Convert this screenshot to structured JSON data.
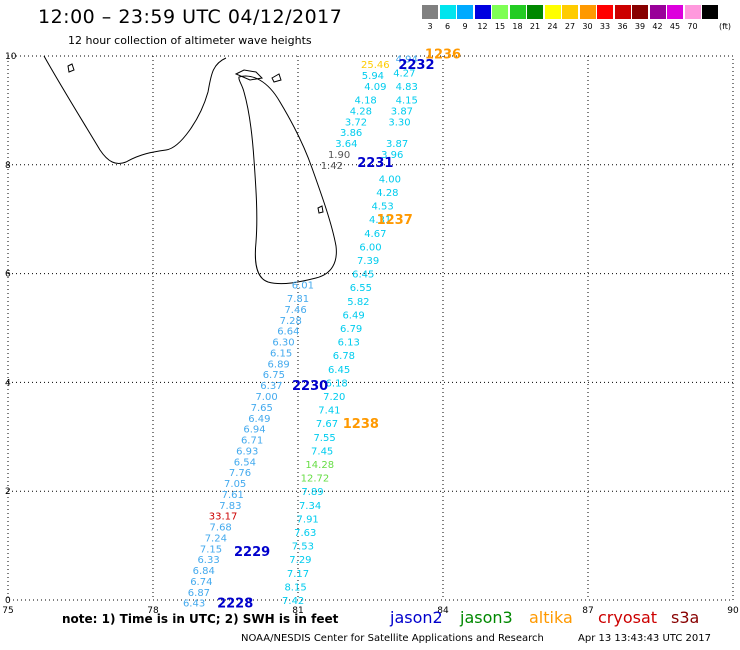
{
  "title": "12:00 – 23:59 UTC 04/12/2017",
  "subtitle": "12 hour collection of altimeter wave heights",
  "legend": {
    "unit": "(ft)",
    "bins": [
      {
        "label": "3",
        "color": "#808080"
      },
      {
        "label": "6",
        "color": "#00e5ee"
      },
      {
        "label": "9",
        "color": "#00aaff"
      },
      {
        "label": "12",
        "color": "#0000e0"
      },
      {
        "label": "15",
        "color": "#7fff55"
      },
      {
        "label": "18",
        "color": "#22cc22"
      },
      {
        "label": "21",
        "color": "#008800"
      },
      {
        "label": "24",
        "color": "#ffff00"
      },
      {
        "label": "27",
        "color": "#ffcc00"
      },
      {
        "label": "30",
        "color": "#ff9900"
      },
      {
        "label": "33",
        "color": "#ff0000"
      },
      {
        "label": "36",
        "color": "#cc0000"
      },
      {
        "label": "39",
        "color": "#880000"
      },
      {
        "label": "42",
        "color": "#990099"
      },
      {
        "label": "45",
        "color": "#dd00dd"
      },
      {
        "label": "70",
        "color": "#ff99dd"
      },
      {
        "label": "",
        "color": "#000000"
      }
    ]
  },
  "map": {
    "lon_range": [
      75,
      90
    ],
    "lat_range": [
      0,
      10
    ],
    "x_ticks": [
      "75",
      "78",
      "81",
      "84",
      "87",
      "90"
    ],
    "y_ticks": [
      "0",
      "2",
      "4",
      "6",
      "8",
      "10"
    ]
  },
  "colors": {
    "cyan": "#00ccee",
    "lightblue": "#44aaee",
    "gray": "#555555",
    "orange": "#ff9900",
    "green": "#66dd44",
    "red": "#cc0000",
    "yellow": "#ffcc00",
    "navy": "#0000cc",
    "altika": "#ff9900"
  },
  "observations": [
    {
      "v": "4.94",
      "lon": 83.25,
      "lat": 9.95,
      "c": "lightblue"
    },
    {
      "v": "25.46",
      "lon": 82.6,
      "lat": 9.85,
      "c": "yellow"
    },
    {
      "v": "5.94",
      "lon": 82.55,
      "lat": 9.65,
      "c": "cyan"
    },
    {
      "v": "4.27",
      "lon": 83.2,
      "lat": 9.7,
      "c": "cyan"
    },
    {
      "v": "4.09",
      "lon": 82.6,
      "lat": 9.45,
      "c": "cyan"
    },
    {
      "v": "4.83",
      "lon": 83.25,
      "lat": 9.45,
      "c": "cyan"
    },
    {
      "v": "4.18",
      "lon": 82.4,
      "lat": 9.2,
      "c": "cyan"
    },
    {
      "v": "4.15",
      "lon": 83.25,
      "lat": 9.2,
      "c": "cyan"
    },
    {
      "v": "4.28",
      "lon": 82.3,
      "lat": 9.0,
      "c": "cyan"
    },
    {
      "v": "3.87",
      "lon": 83.15,
      "lat": 9.0,
      "c": "cyan"
    },
    {
      "v": "3.72",
      "lon": 82.2,
      "lat": 8.8,
      "c": "cyan"
    },
    {
      "v": "3.30",
      "lon": 83.1,
      "lat": 8.8,
      "c": "cyan"
    },
    {
      "v": "3.86",
      "lon": 82.1,
      "lat": 8.6,
      "c": "cyan"
    },
    {
      "v": "3.64",
      "lon": 82.0,
      "lat": 8.4,
      "c": "cyan"
    },
    {
      "v": "3.87",
      "lon": 83.05,
      "lat": 8.4,
      "c": "cyan"
    },
    {
      "v": "1.90",
      "lon": 81.85,
      "lat": 8.2,
      "c": "gray"
    },
    {
      "v": "3.96",
      "lon": 82.95,
      "lat": 8.2,
      "c": "cyan"
    },
    {
      "v": "1.42",
      "lon": 81.7,
      "lat": 8.0,
      "c": "gray"
    },
    {
      "v": "4.00",
      "lon": 82.9,
      "lat": 7.75,
      "c": "cyan"
    },
    {
      "v": "4.28",
      "lon": 82.85,
      "lat": 7.5,
      "c": "cyan"
    },
    {
      "v": "4.53",
      "lon": 82.75,
      "lat": 7.25,
      "c": "cyan"
    },
    {
      "v": "4.31",
      "lon": 82.7,
      "lat": 7.0,
      "c": "cyan"
    },
    {
      "v": "4.67",
      "lon": 82.6,
      "lat": 6.75,
      "c": "cyan"
    },
    {
      "v": "6.00",
      "lon": 82.5,
      "lat": 6.5,
      "c": "cyan"
    },
    {
      "v": "7.39",
      "lon": 82.45,
      "lat": 6.25,
      "c": "cyan"
    },
    {
      "v": "6.45",
      "lon": 82.35,
      "lat": 6.0,
      "c": "cyan"
    },
    {
      "v": "6.55",
      "lon": 82.3,
      "lat": 5.75,
      "c": "cyan"
    },
    {
      "v": "5.82",
      "lon": 82.25,
      "lat": 5.5,
      "c": "cyan"
    },
    {
      "v": "6.49",
      "lon": 82.15,
      "lat": 5.25,
      "c": "cyan"
    },
    {
      "v": "6.79",
      "lon": 82.1,
      "lat": 5.0,
      "c": "cyan"
    },
    {
      "v": "6.13",
      "lon": 82.05,
      "lat": 4.75,
      "c": "cyan"
    },
    {
      "v": "6.78",
      "lon": 81.95,
      "lat": 4.5,
      "c": "cyan"
    },
    {
      "v": "6.45",
      "lon": 81.85,
      "lat": 4.25,
      "c": "cyan"
    },
    {
      "v": "6.18",
      "lon": 81.8,
      "lat": 4.0,
      "c": "cyan"
    },
    {
      "v": "7.20",
      "lon": 81.75,
      "lat": 3.75,
      "c": "cyan"
    },
    {
      "v": "7.41",
      "lon": 81.65,
      "lat": 3.5,
      "c": "cyan"
    },
    {
      "v": "7.67",
      "lon": 81.6,
      "lat": 3.25,
      "c": "cyan"
    },
    {
      "v": "7.55",
      "lon": 81.55,
      "lat": 3.0,
      "c": "cyan"
    },
    {
      "v": "7.45",
      "lon": 81.5,
      "lat": 2.75,
      "c": "cyan"
    },
    {
      "v": "14.28",
      "lon": 81.45,
      "lat": 2.5,
      "c": "green"
    },
    {
      "v": "12.72",
      "lon": 81.35,
      "lat": 2.25,
      "c": "green"
    },
    {
      "v": "7.89",
      "lon": 81.3,
      "lat": 2.0,
      "c": "cyan"
    },
    {
      "v": "7.34",
      "lon": 81.25,
      "lat": 1.75,
      "c": "cyan"
    },
    {
      "v": "7.91",
      "lon": 81.2,
      "lat": 1.5,
      "c": "cyan"
    },
    {
      "v": "7.63",
      "lon": 81.15,
      "lat": 1.25,
      "c": "cyan"
    },
    {
      "v": "7.53",
      "lon": 81.1,
      "lat": 1.0,
      "c": "cyan"
    },
    {
      "v": "7.29",
      "lon": 81.05,
      "lat": 0.75,
      "c": "cyan"
    },
    {
      "v": "7.17",
      "lon": 81.0,
      "lat": 0.5,
      "c": "cyan"
    },
    {
      "v": "8.15",
      "lon": 80.95,
      "lat": 0.25,
      "c": "cyan"
    },
    {
      "v": "7.42",
      "lon": 80.9,
      "lat": 0.0,
      "c": "cyan"
    },
    {
      "v": "6.01",
      "lon": 81.1,
      "lat": 5.8,
      "c": "lightblue"
    },
    {
      "v": "7.81",
      "lon": 81.0,
      "lat": 5.55,
      "c": "lightblue"
    },
    {
      "v": "7.46",
      "lon": 80.95,
      "lat": 5.35,
      "c": "lightblue"
    },
    {
      "v": "7.28",
      "lon": 80.85,
      "lat": 5.15,
      "c": "lightblue"
    },
    {
      "v": "6.64",
      "lon": 80.8,
      "lat": 4.95,
      "c": "lightblue"
    },
    {
      "v": "6.30",
      "lon": 80.7,
      "lat": 4.75,
      "c": "lightblue"
    },
    {
      "v": "6.15",
      "lon": 80.65,
      "lat": 4.55,
      "c": "lightblue"
    },
    {
      "v": "6.89",
      "lon": 80.6,
      "lat": 4.35,
      "c": "lightblue"
    },
    {
      "v": "6.75",
      "lon": 80.5,
      "lat": 4.15,
      "c": "lightblue"
    },
    {
      "v": "6.37",
      "lon": 80.45,
      "lat": 3.95,
      "c": "lightblue"
    },
    {
      "v": "7.00",
      "lon": 80.35,
      "lat": 3.75,
      "c": "lightblue"
    },
    {
      "v": "7.65",
      "lon": 80.25,
      "lat": 3.55,
      "c": "lightblue"
    },
    {
      "v": "6.49",
      "lon": 80.2,
      "lat": 3.35,
      "c": "lightblue"
    },
    {
      "v": "6.94",
      "lon": 80.1,
      "lat": 3.15,
      "c": "lightblue"
    },
    {
      "v": "6.71",
      "lon": 80.05,
      "lat": 2.95,
      "c": "lightblue"
    },
    {
      "v": "6.93",
      "lon": 79.95,
      "lat": 2.75,
      "c": "lightblue"
    },
    {
      "v": "6.54",
      "lon": 79.9,
      "lat": 2.55,
      "c": "lightblue"
    },
    {
      "v": "7.76",
      "lon": 79.8,
      "lat": 2.35,
      "c": "lightblue"
    },
    {
      "v": "7.05",
      "lon": 79.7,
      "lat": 2.15,
      "c": "lightblue"
    },
    {
      "v": "7.61",
      "lon": 79.65,
      "lat": 1.95,
      "c": "lightblue"
    },
    {
      "v": "7.83",
      "lon": 79.6,
      "lat": 1.75,
      "c": "lightblue"
    },
    {
      "v": "33.17",
      "lon": 79.45,
      "lat": 1.55,
      "c": "red"
    },
    {
      "v": "7.68",
      "lon": 79.4,
      "lat": 1.35,
      "c": "lightblue"
    },
    {
      "v": "7.24",
      "lon": 79.3,
      "lat": 1.15,
      "c": "lightblue"
    },
    {
      "v": "7.15",
      "lon": 79.2,
      "lat": 0.95,
      "c": "lightblue"
    },
    {
      "v": "6.33",
      "lon": 79.15,
      "lat": 0.75,
      "c": "lightblue"
    },
    {
      "v": "6.84",
      "lon": 79.05,
      "lat": 0.55,
      "c": "lightblue"
    },
    {
      "v": "6.74",
      "lon": 79.0,
      "lat": 0.35,
      "c": "lightblue"
    },
    {
      "v": "6.87",
      "lon": 78.95,
      "lat": 0.15,
      "c": "lightblue"
    },
    {
      "v": "6.43",
      "lon": 78.85,
      "lat": -0.05,
      "c": "lightblue"
    }
  ],
  "times": [
    {
      "t": "1236",
      "lon": 84.0,
      "lat": 10.05,
      "c": "orange"
    },
    {
      "t": "2232",
      "lon": 83.45,
      "lat": 9.85,
      "c": "navy"
    },
    {
      "t": "2231",
      "lon": 82.6,
      "lat": 8.05,
      "c": "navy"
    },
    {
      "t": "1237",
      "lon": 83.0,
      "lat": 7.0,
      "c": "orange"
    },
    {
      "t": "2230",
      "lon": 81.25,
      "lat": 3.95,
      "c": "navy"
    },
    {
      "t": "1238",
      "lon": 82.3,
      "lat": 3.25,
      "c": "orange"
    },
    {
      "t": "2229",
      "lon": 80.05,
      "lat": 0.9,
      "c": "navy"
    },
    {
      "t": "2228",
      "lon": 79.7,
      "lat": -0.05,
      "c": "navy"
    }
  ],
  "note": "note:  1) Time is in UTC;  2) SWH is in feet",
  "satellites": [
    {
      "name": "jason2",
      "color": "#0000cc"
    },
    {
      "name": "jason3",
      "color": "#008800"
    },
    {
      "name": "altika",
      "color": "#ff9900"
    },
    {
      "name": "cryosat",
      "color": "#cc0000"
    },
    {
      "name": "s3a",
      "color": "#880000"
    }
  ],
  "credit": "NOAA/NESDIS Center for Satellite Applications and Research",
  "timestamp": "Apr 13 13:43:43 UTC 2017"
}
